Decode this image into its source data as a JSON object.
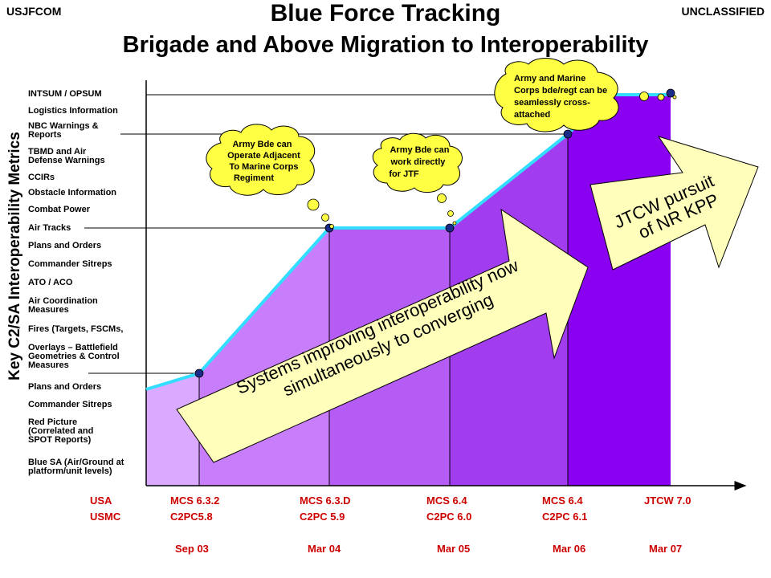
{
  "header": {
    "left_tag": "USJFCOM",
    "right_tag": "UNCLASSIFIED",
    "title_line1": "Blue Force Tracking",
    "title_line2": "Brigade and Above Migration to Interoperability"
  },
  "y_axis_label": "Key C2/SA Interoperability Metrics",
  "metrics": [
    "INTSUM / OPSUM",
    "Logistics Information",
    "NBC Warnings & Reports",
    "TBMD and Air Defense Warnings",
    "CCIRs",
    "Obstacle Information",
    "Combat Power",
    "Air Tracks",
    "Plans and Orders",
    "Commander Sitreps",
    "ATO / ACO",
    "Air Coordination Measures",
    "Fires (Targets, FSCMs,",
    "Overlays – Battlefield Geometries & Control Measures",
    "Plans and Orders",
    "Commander Sitreps",
    "Red Picture (Correlated and SPOT Reports)",
    "Blue SA (Air/Ground at platform/unit levels)"
  ],
  "x_axis": {
    "service_labels": [
      "USA",
      "USMC"
    ],
    "systems": [
      {
        "line1": "MCS 6.3.2",
        "line2": "C2PC5.8",
        "date": "Sep 03"
      },
      {
        "line1": "MCS 6.3.D",
        "line2": "C2PC 5.9",
        "date": "Mar 04"
      },
      {
        "line1": "MCS 6.4",
        "line2": "C2PC 6.0",
        "date": "Mar 05"
      },
      {
        "line1": "MCS 6.4",
        "line2": "C2PC 6.1",
        "date": "Mar 06"
      },
      {
        "line1": "JTCW 7.0",
        "line2": "",
        "date": "Mar 07"
      }
    ]
  },
  "callouts": {
    "cloud1": [
      "Army Bde can",
      "Operate Adjacent",
      "To Marine Corps",
      "Regiment"
    ],
    "cloud2": [
      "Army Bde can",
      "work directly",
      "for JTF"
    ],
    "cloud3": [
      "Army and Marine",
      "Corps bde/regt can be",
      "seamlessly cross-",
      "attached"
    ]
  },
  "arrows": {
    "main": [
      "Systems improving interoperability now",
      "simultaneously to converging"
    ],
    "jtcw": [
      "JTCW pursuit",
      "of NR KPP"
    ]
  },
  "colors": {
    "band1": "#d9aaff",
    "band2": "#c87dfb",
    "band3": "#b55cf5",
    "band4": "#a13cef",
    "band5": "#8a00f0",
    "trend_line": "#33ddff",
    "marker": "#1a2a88",
    "cloud_fill": "#ffff44",
    "arrow_fill": "#ffffbb",
    "date_text": "#cc0000"
  }
}
